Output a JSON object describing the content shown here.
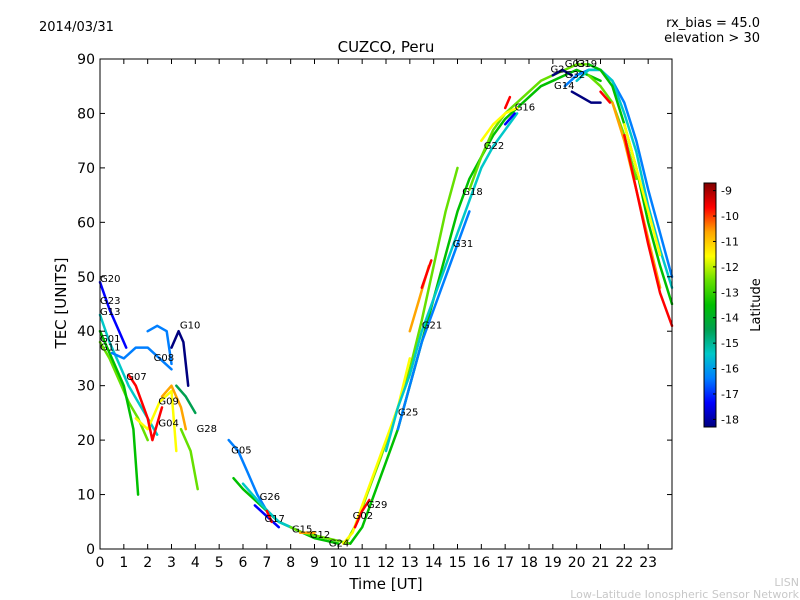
{
  "header": {
    "date": "2014/03/31",
    "rx_bias": "rx_bias = 45.0",
    "elevation": "elevation > 30"
  },
  "footer": {
    "line1": "LISN",
    "line2": "Low-Latitude Ionospheric Sensor Network"
  },
  "colorbar": {
    "label": "Latitude",
    "ticks": [
      "-9",
      "-10",
      "-11",
      "-12",
      "-13",
      "-14",
      "-15",
      "-16",
      "-17",
      "-18"
    ],
    "range": [
      -18.3,
      -8.7
    ],
    "colormap": [
      "#00007f",
      "#0000ff",
      "#007fff",
      "#00c8c8",
      "#00a050",
      "#00c000",
      "#66e000",
      "#ffff00",
      "#ffa500",
      "#ff0000",
      "#7f0000"
    ]
  },
  "chart_data": {
    "type": "line",
    "title": "CUZCO, Peru",
    "xlabel": "Time [UT]",
    "ylabel": "TEC [UNITS]",
    "xlim": [
      0,
      24
    ],
    "ylim": [
      0,
      90
    ],
    "xticks": [
      "0",
      "1",
      "2",
      "3",
      "4",
      "5",
      "6",
      "7",
      "8",
      "9",
      "10",
      "11",
      "12",
      "13",
      "14",
      "15",
      "16",
      "17",
      "18",
      "19",
      "20",
      "21",
      "22",
      "23"
    ],
    "yticks": [
      "0",
      "10",
      "20",
      "30",
      "40",
      "50",
      "60",
      "70",
      "80",
      "90"
    ],
    "grid": false,
    "series": [
      {
        "color": "#00c8c8",
        "x": [
          0,
          0.4,
          0.8,
          1.2,
          1.6,
          2.0,
          2.4
        ],
        "y": [
          43,
          38,
          34,
          30,
          27,
          24,
          21
        ]
      },
      {
        "color": "#66e000",
        "x": [
          0,
          0.4,
          0.8,
          1.2,
          1.6,
          2.0
        ],
        "y": [
          38,
          35,
          31,
          27,
          24,
          20
        ]
      },
      {
        "color": "#00c000",
        "x": [
          0,
          0.5,
          1.0,
          1.4,
          1.6
        ],
        "y": [
          40,
          35,
          30,
          22,
          10
        ]
      },
      {
        "color": "#0000ff",
        "x": [
          0,
          0.4,
          0.8,
          1.1
        ],
        "y": [
          49,
          44,
          40,
          37
        ]
      },
      {
        "color": "#007fff",
        "x": [
          0.5,
          1.0,
          1.5,
          2.0,
          2.5,
          3.0
        ],
        "y": [
          36,
          35,
          37,
          37,
          35,
          33
        ]
      },
      {
        "color": "#ffff00",
        "x": [
          1.5,
          2.0,
          2.5,
          3.0,
          3.2
        ],
        "y": [
          24,
          22,
          27,
          29,
          18
        ]
      },
      {
        "color": "#ff0000",
        "x": [
          1.2,
          1.5,
          2.0,
          2.2,
          2.6
        ],
        "y": [
          32,
          30,
          24,
          20,
          26
        ]
      },
      {
        "color": "#007fff",
        "x": [
          2.0,
          2.4,
          2.8,
          3.0
        ],
        "y": [
          40,
          41,
          40,
          34
        ]
      },
      {
        "color": "#00007f",
        "x": [
          3.0,
          3.3,
          3.5,
          3.7
        ],
        "y": [
          37,
          40,
          38,
          30
        ]
      },
      {
        "color": "#ffa500",
        "x": [
          2.6,
          3.0,
          3.4,
          3.6
        ],
        "y": [
          28,
          30,
          26,
          22
        ]
      },
      {
        "color": "#00a050",
        "x": [
          3.2,
          3.6,
          4.0
        ],
        "y": [
          30,
          28,
          25
        ]
      },
      {
        "color": "#66e000",
        "x": [
          3.4,
          3.8,
          4.1
        ],
        "y": [
          22,
          18,
          11
        ]
      },
      {
        "color": "#007fff",
        "x": [
          5.4,
          5.8,
          6.2,
          6.6,
          7.0,
          7.5
        ],
        "y": [
          20,
          18,
          14,
          10,
          7,
          5
        ]
      },
      {
        "color": "#0000ff",
        "x": [
          6.5,
          7.0,
          7.5
        ],
        "y": [
          8,
          6,
          4
        ]
      },
      {
        "color": "#00c000",
        "x": [
          5.6,
          6.0,
          6.5,
          7.0,
          7.5,
          8.0,
          8.5,
          9.0,
          9.5,
          10.0
        ],
        "y": [
          13,
          11,
          9,
          7,
          5,
          4,
          3,
          2,
          1.5,
          1
        ]
      },
      {
        "color": "#00c8c8",
        "x": [
          6.0,
          6.8,
          7.5,
          8.0,
          8.5,
          9.0
        ],
        "y": [
          12,
          8,
          5,
          4,
          3,
          2.5
        ]
      },
      {
        "color": "#66e000",
        "x": [
          8.0,
          8.5,
          9.0,
          9.5,
          10.0,
          10.5
        ],
        "y": [
          4,
          3,
          2.5,
          2,
          1.5,
          1
        ]
      },
      {
        "color": "#ff0000",
        "x": [
          7.0,
          7.2
        ],
        "y": [
          7,
          5
        ]
      },
      {
        "color": "#ffa500",
        "x": [
          8.4,
          9.0
        ],
        "y": [
          3,
          3
        ]
      },
      {
        "color": "#66e000",
        "x": [
          10.3,
          10.8,
          11.2,
          11.8,
          12.5,
          13.0,
          13.5,
          14.0,
          14.5,
          15.0
        ],
        "y": [
          1,
          5,
          10,
          17,
          26,
          33,
          42,
          52,
          62,
          70
        ]
      },
      {
        "color": "#ffff00",
        "x": [
          10.2,
          10.6,
          11.0,
          11.5,
          12.0,
          12.5,
          13.0
        ],
        "y": [
          1,
          3,
          8,
          14,
          20,
          26,
          35
        ]
      },
      {
        "color": "#ff0000",
        "x": [
          10.7,
          11.0,
          11.3
        ],
        "y": [
          4,
          7,
          9
        ]
      },
      {
        "color": "#00c000",
        "x": [
          10.5,
          11.0,
          11.5,
          12.0,
          12.5,
          13.0,
          13.5,
          14.0,
          14.5,
          15.0,
          15.5,
          16.0,
          16.5,
          17.0,
          17.5,
          18.0,
          18.5,
          19.0,
          19.5,
          20.0,
          20.5,
          21.0
        ],
        "y": [
          1,
          4,
          10,
          16,
          22,
          30,
          38,
          46,
          54,
          62,
          68,
          72,
          76,
          79,
          81,
          83,
          85,
          86,
          87,
          88,
          87,
          86
        ]
      },
      {
        "color": "#00c8c8",
        "x": [
          12.0,
          12.5,
          13.0,
          13.5,
          14.0,
          14.5,
          15.0,
          15.5,
          16.0,
          16.5,
          17.0,
          17.5
        ],
        "y": [
          18,
          26,
          32,
          40,
          46,
          52,
          58,
          64,
          70,
          74,
          77,
          80
        ]
      },
      {
        "color": "#007fff",
        "x": [
          12.5,
          13.0,
          13.5,
          14.0,
          14.5,
          15.0,
          15.5
        ],
        "y": [
          22,
          30,
          38,
          44,
          50,
          56,
          62
        ]
      },
      {
        "color": "#ffa500",
        "x": [
          13.0,
          13.4,
          13.8
        ],
        "y": [
          40,
          46,
          52
        ]
      },
      {
        "color": "#ff0000",
        "x": [
          13.5,
          13.9
        ],
        "y": [
          48,
          53
        ]
      },
      {
        "color": "#66e000",
        "x": [
          15.5,
          16.0,
          16.5,
          17.0,
          17.5,
          18.0,
          18.5,
          19.0,
          19.5,
          20.0,
          20.5
        ],
        "y": [
          66,
          72,
          77,
          80,
          82,
          84,
          86,
          87,
          88,
          89,
          89
        ]
      },
      {
        "color": "#ffff00",
        "x": [
          16.0,
          16.5,
          17.0,
          17.5
        ],
        "y": [
          75,
          78,
          80,
          81
        ]
      },
      {
        "color": "#ff0000",
        "x": [
          17.0,
          17.2
        ],
        "y": [
          81,
          83
        ]
      },
      {
        "color": "#0000ff",
        "x": [
          17.0,
          17.4
        ],
        "y": [
          78,
          80
        ]
      },
      {
        "color": "#00007f",
        "x": [
          19.0,
          19.4,
          19.8
        ],
        "y": [
          87,
          88,
          87
        ]
      },
      {
        "color": "#00007f",
        "x": [
          19.8,
          20.2,
          20.6,
          21.0
        ],
        "y": [
          84,
          83,
          82,
          82
        ]
      },
      {
        "color": "#007fff",
        "x": [
          19.5,
          20.0,
          20.5,
          21.0,
          21.5,
          22.0,
          22.5,
          23.0,
          23.5,
          24.0
        ],
        "y": [
          85,
          87,
          88,
          88,
          86,
          82,
          75,
          66,
          58,
          50
        ]
      },
      {
        "color": "#00c8c8",
        "x": [
          20.0,
          20.5,
          21.0,
          21.5,
          22.0,
          22.5,
          23.0,
          23.5,
          24.0
        ],
        "y": [
          86,
          88,
          88,
          86,
          80,
          73,
          63,
          55,
          48
        ]
      },
      {
        "color": "#00c000",
        "x": [
          20.5,
          21.0,
          21.5,
          22.0,
          22.5,
          23.0,
          23.5,
          24.0
        ],
        "y": [
          89,
          88,
          85,
          78,
          70,
          60,
          52,
          45
        ]
      },
      {
        "color": "#66e000",
        "x": [
          20.5,
          21.0,
          21.5,
          22.0,
          22.5
        ],
        "y": [
          87,
          85,
          82,
          76,
          68
        ]
      },
      {
        "color": "#ffa500",
        "x": [
          21.5,
          22.0,
          22.5,
          23.0,
          23.5
        ],
        "y": [
          82,
          75,
          66,
          57,
          48
        ]
      },
      {
        "color": "#ff0000",
        "x": [
          21.0,
          21.4
        ],
        "y": [
          84,
          82
        ]
      },
      {
        "color": "#ff0000",
        "x": [
          22.0,
          22.5,
          23.0,
          23.5,
          24.0
        ],
        "y": [
          76,
          66,
          56,
          47,
          41
        ]
      },
      {
        "color": "#ffff00",
        "x": [
          22.0,
          22.5,
          23.0,
          23.5
        ],
        "y": [
          78,
          70,
          62,
          54
        ]
      }
    ],
    "annotations": [
      {
        "text": "G20",
        "x": 0.0,
        "y": 49
      },
      {
        "text": "G23",
        "x": 0.0,
        "y": 45
      },
      {
        "text": "G13",
        "x": 0.0,
        "y": 43
      },
      {
        "text": "G01",
        "x": 0.0,
        "y": 38
      },
      {
        "text": "G11",
        "x": 0.0,
        "y": 36.5
      },
      {
        "text": "G10",
        "x": 3.35,
        "y": 40.5
      },
      {
        "text": "G08",
        "x": 2.25,
        "y": 34.5
      },
      {
        "text": "G07",
        "x": 1.1,
        "y": 31
      },
      {
        "text": "G09",
        "x": 2.45,
        "y": 26.5
      },
      {
        "text": "G04",
        "x": 2.45,
        "y": 22.5
      },
      {
        "text": "G28",
        "x": 4.05,
        "y": 21.5
      },
      {
        "text": "G05",
        "x": 5.5,
        "y": 17.5
      },
      {
        "text": "G26",
        "x": 6.7,
        "y": 9
      },
      {
        "text": "G17",
        "x": 6.9,
        "y": 5
      },
      {
        "text": "G15",
        "x": 8.05,
        "y": 3
      },
      {
        "text": "G12",
        "x": 8.8,
        "y": 2
      },
      {
        "text": "G24",
        "x": 9.6,
        "y": 0.5
      },
      {
        "text": "G02",
        "x": 10.6,
        "y": 5.5
      },
      {
        "text": "G29",
        "x": 11.2,
        "y": 7.5
      },
      {
        "text": "G25",
        "x": 12.5,
        "y": 24.5
      },
      {
        "text": "G21",
        "x": 13.5,
        "y": 40.5
      },
      {
        "text": "G31",
        "x": 14.8,
        "y": 55.5
      },
      {
        "text": "G18",
        "x": 15.2,
        "y": 65
      },
      {
        "text": "G22",
        "x": 16.1,
        "y": 73.5
      },
      {
        "text": "G16",
        "x": 17.4,
        "y": 80.5
      },
      {
        "text": "G14",
        "x": 19.05,
        "y": 84.5
      },
      {
        "text": "G2",
        "x": 18.9,
        "y": 87.5
      },
      {
        "text": "G03",
        "x": 19.5,
        "y": 88.5
      },
      {
        "text": "G19",
        "x": 20.0,
        "y": 88.5
      },
      {
        "text": "G32",
        "x": 19.5,
        "y": 86.5
      }
    ]
  }
}
